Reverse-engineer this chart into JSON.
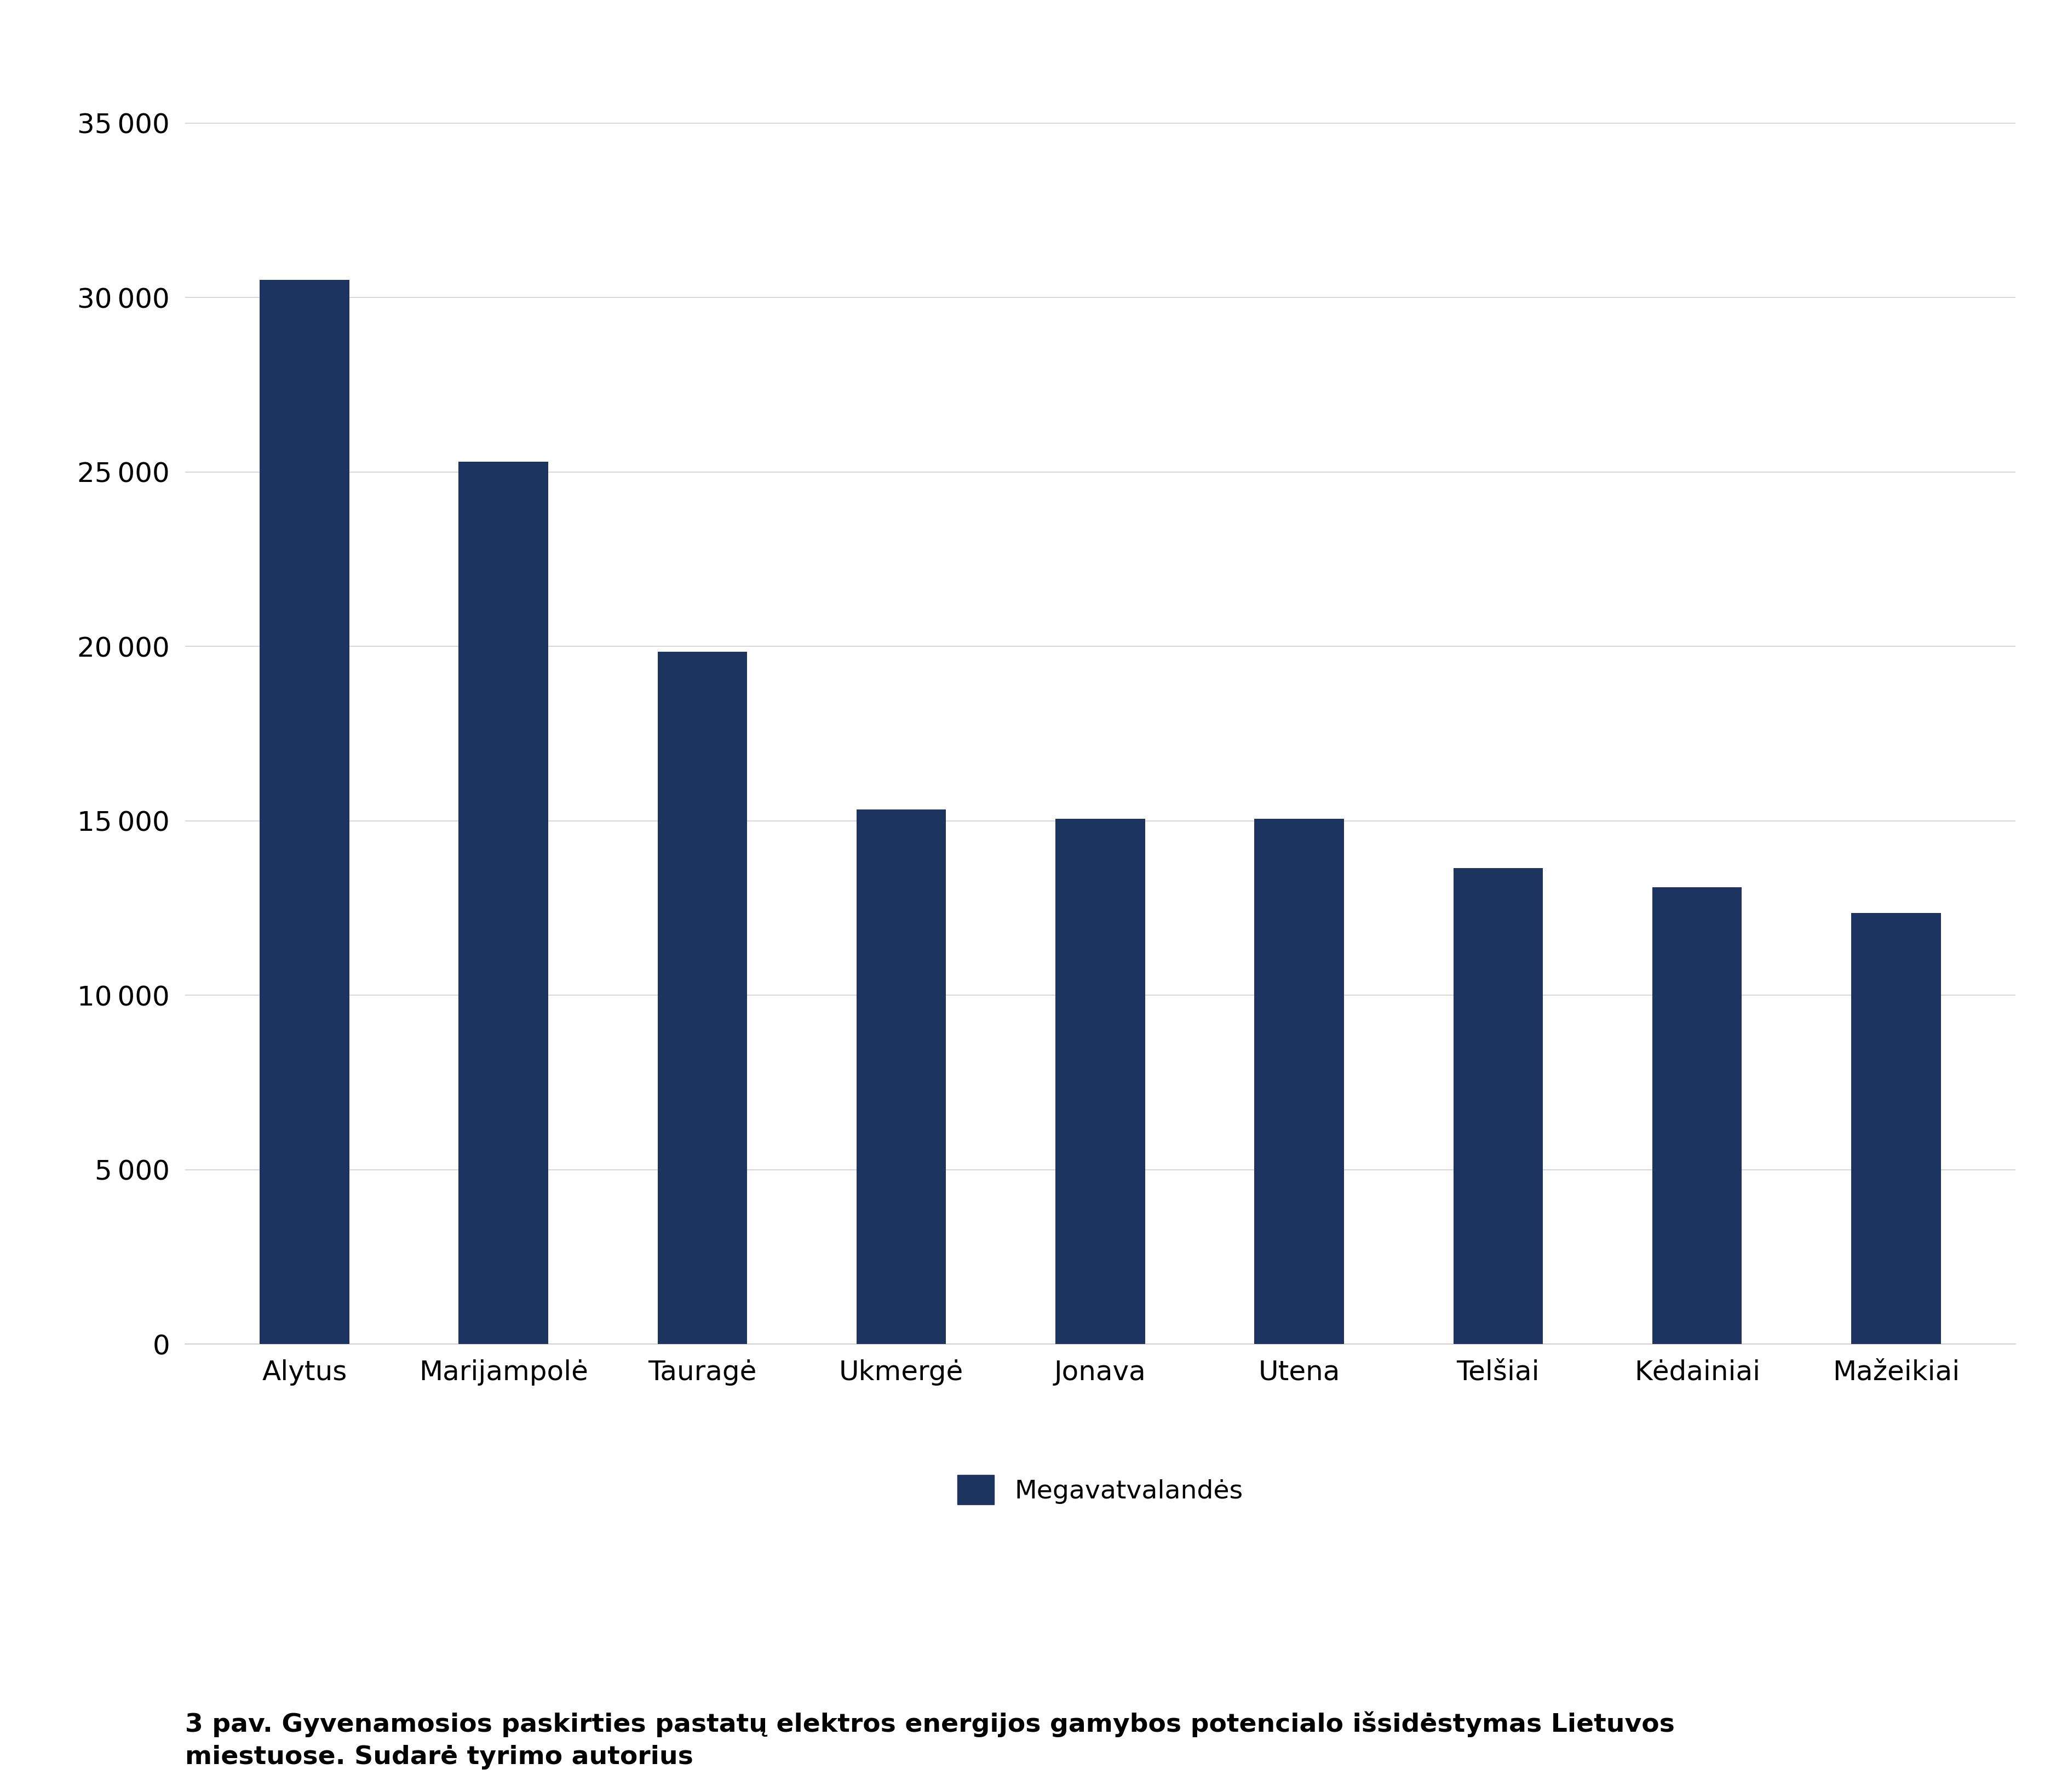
{
  "categories": [
    "Alytus",
    "Marijampolė",
    "Tauragė",
    "Ukmergė",
    "Jonava",
    "Utena",
    "Telšiai",
    "Kėdainiai",
    "Mažeikiai"
  ],
  "values": [
    30500,
    25300,
    19850,
    15330,
    15050,
    15060,
    13650,
    13100,
    12350
  ],
  "bar_color": "#1d3461",
  "legend_label": "Megavatvalandės",
  "yticks": [
    0,
    5000,
    10000,
    15000,
    20000,
    25000,
    30000,
    35000
  ],
  "ylim": [
    0,
    37500
  ],
  "background_color": "#ffffff",
  "caption_line1": "3 pav. Gyvenamosios paskirties pastatų elektros energijos gamybos potencialo išsidėstymas Lietuvos",
  "caption_line2": "miestuose. Sudarė tyrimo autorius",
  "tick_fontsize": 36,
  "legend_fontsize": 34,
  "caption_fontsize": 34,
  "bar_width": 0.45,
  "grid_color": "#d0d0d0",
  "spine_color": "#cccccc"
}
